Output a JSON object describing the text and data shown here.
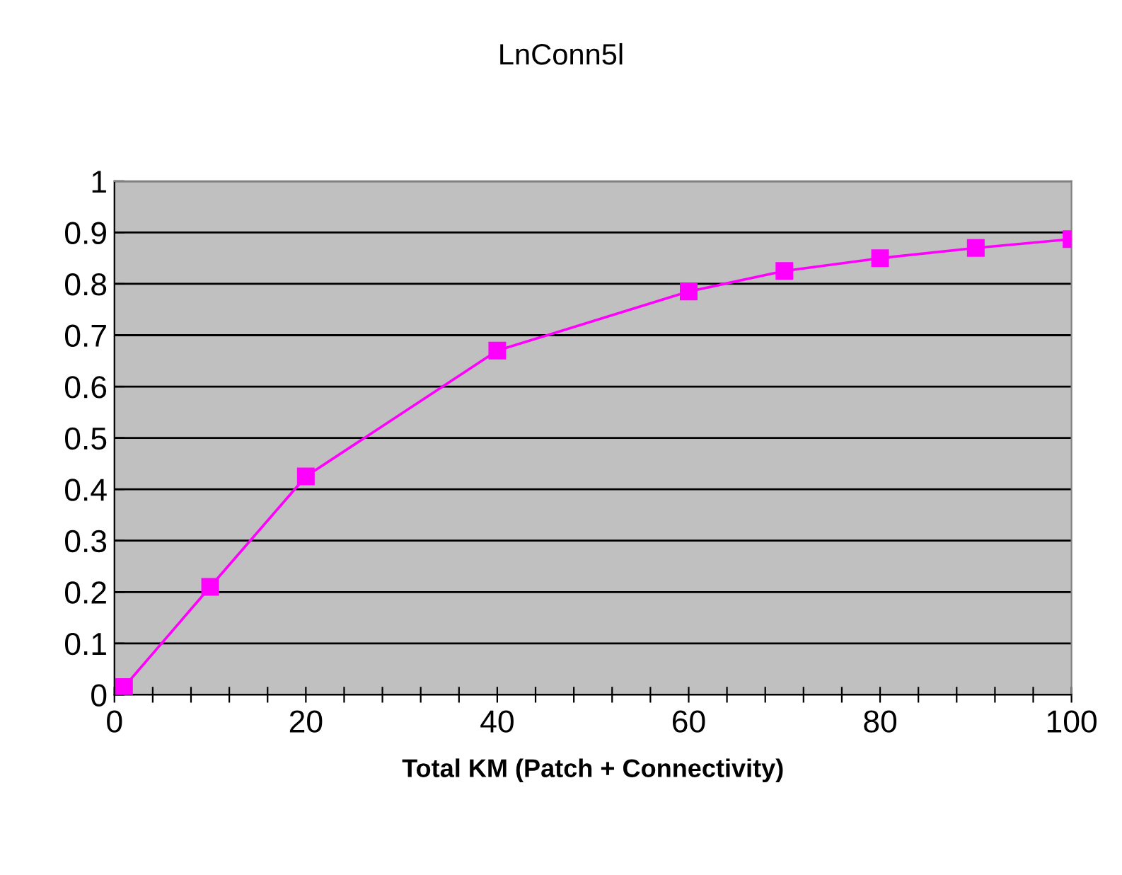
{
  "chart_data": {
    "type": "line",
    "title": "LnConn5l",
    "xlabel": "Total KM (Patch + Connectivity)",
    "x": [
      1,
      10,
      20,
      40,
      60,
      70,
      80,
      90,
      100
    ],
    "series": [
      {
        "color": "#ff00ff",
        "values": [
          0.015,
          0.21,
          0.425,
          0.67,
          0.785,
          0.825,
          0.85,
          0.87,
          0.887
        ]
      }
    ],
    "marker": "square",
    "line_style": "solid",
    "grid": "y",
    "legend": false,
    "xlim": [
      0,
      100
    ],
    "ylim": [
      0,
      1
    ],
    "xticks": [
      0,
      {
        "value": 4,
        "label": null
      },
      {
        "value": 8,
        "label": null
      },
      {
        "value": 12,
        "label": null
      },
      {
        "value": 16,
        "label": null
      },
      20,
      {
        "value": 24,
        "label": null
      },
      {
        "value": 28,
        "label": null
      },
      {
        "value": 32,
        "label": null
      },
      {
        "value": 36,
        "label": null
      },
      40,
      {
        "value": 44,
        "label": null
      },
      {
        "value": 48,
        "label": null
      },
      {
        "value": 52,
        "label": null
      },
      {
        "value": 56,
        "label": null
      },
      60,
      {
        "value": 64,
        "label": null
      },
      {
        "value": 68,
        "label": null
      },
      {
        "value": 72,
        "label": null
      },
      {
        "value": 76,
        "label": null
      },
      80,
      {
        "value": 84,
        "label": null
      },
      {
        "value": 88,
        "label": null
      },
      {
        "value": 92,
        "label": null
      },
      {
        "value": 96,
        "label": null
      },
      100
    ],
    "yticks": [
      0,
      0.1,
      0.2,
      0.3,
      0.4,
      0.5,
      0.6,
      0.7,
      0.8,
      0.9,
      1
    ]
  }
}
